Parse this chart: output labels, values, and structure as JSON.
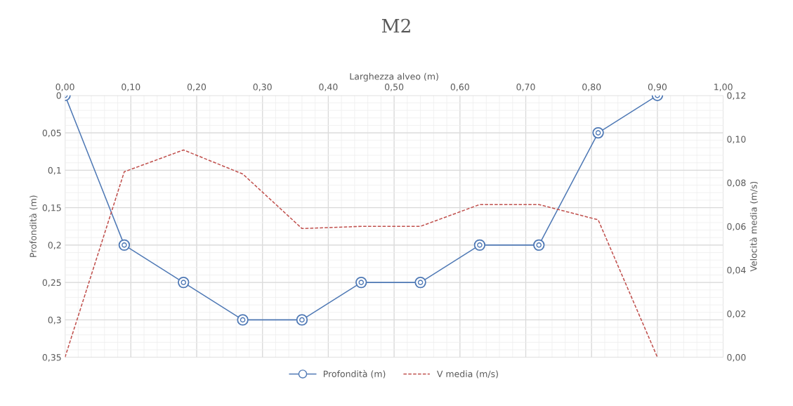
{
  "chart_data": {
    "type": "line",
    "title": "M2",
    "xlabel": "Larghezza alveo (m)",
    "ylabel": "Profondità (m)",
    "y2label": "Velocità media (m/s)",
    "x": [
      0,
      0.09,
      0.18,
      0.27,
      0.36,
      0.45,
      0.54,
      0.63,
      0.72,
      0.81,
      0.9
    ],
    "series": [
      {
        "name": "Profondità (m)",
        "color": "#4f79b5",
        "marker": "circle",
        "line_style": "solid",
        "values": [
          0,
          0.2,
          0.25,
          0.3,
          0.3,
          0.25,
          0.25,
          0.2,
          0.2,
          0.05,
          0
        ]
      },
      {
        "name": "V media (m/s)",
        "color": "#c0504d",
        "marker": "none",
        "line_style": "dashed",
        "axis": "y2",
        "values": [
          0,
          0.085,
          0.095,
          0.084,
          0.059,
          0.06,
          0.06,
          0.07,
          0.07,
          0.063,
          0
        ]
      }
    ],
    "xlim": [
      0,
      1
    ],
    "xticks": [
      {
        "value": 0,
        "label": "0,00"
      },
      {
        "value": 0.1,
        "label": "0,10"
      },
      {
        "value": 0.2,
        "label": "0,20"
      },
      {
        "value": 0.3,
        "label": "0,30"
      },
      {
        "value": 0.4,
        "label": "0,40"
      },
      {
        "value": 0.5,
        "label": "0,50"
      },
      {
        "value": 0.6,
        "label": "0,60"
      },
      {
        "value": 0.7,
        "label": "0,70"
      },
      {
        "value": 0.8,
        "label": "0,80"
      },
      {
        "value": 0.9,
        "label": "0,90"
      },
      {
        "value": 1,
        "label": "1,00"
      }
    ],
    "ylim": [
      0.35,
      0
    ],
    "yticks": [
      0,
      {
        "value": 0.05,
        "label": "0,05"
      },
      {
        "value": 0.1,
        "label": "0,1"
      },
      {
        "value": 0.15,
        "label": "0,15"
      },
      {
        "value": 0.2,
        "label": "0,2"
      },
      {
        "value": 0.25,
        "label": "0,25"
      },
      {
        "value": 0.3,
        "label": "0,3"
      },
      {
        "value": 0.35,
        "label": "0,35"
      }
    ],
    "y2lim": [
      0,
      0.12
    ],
    "y2ticks": [
      {
        "value": 0,
        "label": "0,00"
      },
      {
        "value": 0.02,
        "label": "0,02"
      },
      {
        "value": 0.04,
        "label": "0,04"
      },
      {
        "value": 0.06,
        "label": "0,06"
      },
      {
        "value": 0.08,
        "label": "0,08"
      },
      {
        "value": 0.1,
        "label": "0,10"
      },
      {
        "value": 0.12,
        "label": "0,12"
      }
    ],
    "grid": true,
    "legend": "bottom"
  }
}
